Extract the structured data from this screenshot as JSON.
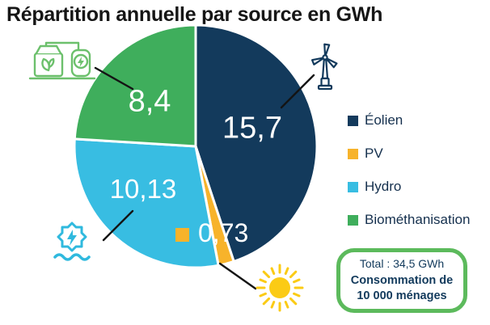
{
  "title": "Répartition annuelle par source en GWh",
  "chart_data": {
    "type": "pie",
    "title": "Répartition annuelle par source en GWh",
    "unit": "GWh",
    "direction": "clockwise",
    "start_angle_deg": 0,
    "legend_position": "right",
    "slices": [
      {
        "id": "eolien",
        "label": "Éolien",
        "value": 15.7,
        "display": "15,7",
        "color": "#133A5C"
      },
      {
        "id": "pv",
        "label": "PV",
        "value": 0.73,
        "display": "0,73",
        "color": "#F7B32B"
      },
      {
        "id": "hydro",
        "label": "Hydro",
        "value": 10.13,
        "display": "10,13",
        "color": "#38BDE2"
      },
      {
        "id": "biomethanisation",
        "label": "Biométhanisation",
        "value": 8.4,
        "display": "8,4",
        "color": "#3FAE5C"
      }
    ],
    "total_value": 34.5,
    "total_label": "Total : 34,5 GWh"
  },
  "legend": {
    "items": [
      {
        "label": "Éolien",
        "color": "#133A5C"
      },
      {
        "label": "PV",
        "color": "#F7B32B"
      },
      {
        "label": "Hydro",
        "color": "#38BDE2"
      },
      {
        "label": "Biométhanisation",
        "color": "#3FAE5C"
      }
    ]
  },
  "callout_box": {
    "total": "Total : 34,5 GWh",
    "line1": "Consommation de",
    "line2": "10 000 ménages",
    "border_color": "#5CBA5C"
  },
  "icons": {
    "wind_turbine": "wind-turbine-icon",
    "biogas_plant": "biogas-plant-icon",
    "hydro_power": "hydro-power-icon",
    "sun": "sun-icon"
  },
  "colors": {
    "leader_line": "#141414",
    "label_text": "#FFFFFF",
    "legend_text": "#15304E",
    "sun": "#FBCB15",
    "biogas_icon": "#6CC06C",
    "hydro_icon": "#2FB9DE",
    "wind_icon": "#123A5C"
  }
}
